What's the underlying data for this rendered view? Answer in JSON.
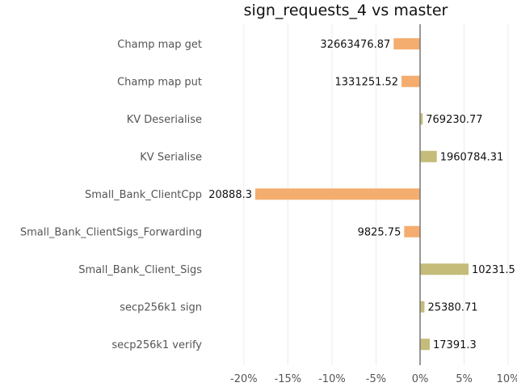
{
  "chart_data": {
    "type": "bar",
    "orientation": "horizontal",
    "title": "sign_requests_4 vs master",
    "xlabel": "",
    "ylabel": "",
    "x_unit": "%",
    "xlim": [
      -22,
      11
    ],
    "xticks": [
      -20,
      -15,
      -10,
      -5,
      0,
      5,
      10
    ],
    "xtick_labels": [
      "-20%",
      "-15%",
      "-10%",
      "-5%",
      "0%",
      "5%",
      "10%"
    ],
    "grid": true,
    "categories": [
      "Champ map get",
      "Champ map put",
      "KV Deserialise",
      "KV Serialise",
      "Small_Bank_ClientCpp",
      "Small_Bank_ClientSigs_Forwarding",
      "Small_Bank_Client_Sigs",
      "secp256k1 sign",
      "secp256k1 verify"
    ],
    "values": [
      -3.0,
      -2.1,
      0.3,
      1.9,
      -18.7,
      -1.8,
      5.5,
      0.5,
      1.1
    ],
    "data_labels": [
      "32663476.87",
      "1331251.52",
      "769230.77",
      "1960784.31",
      "20888.3",
      "9825.75",
      "10231.5",
      "25380.71",
      "17391.3"
    ],
    "colors": {
      "negative": "#f4ad6e",
      "positive": "#c4bc78",
      "zero_line": "#777777",
      "grid": "#ececec"
    }
  }
}
